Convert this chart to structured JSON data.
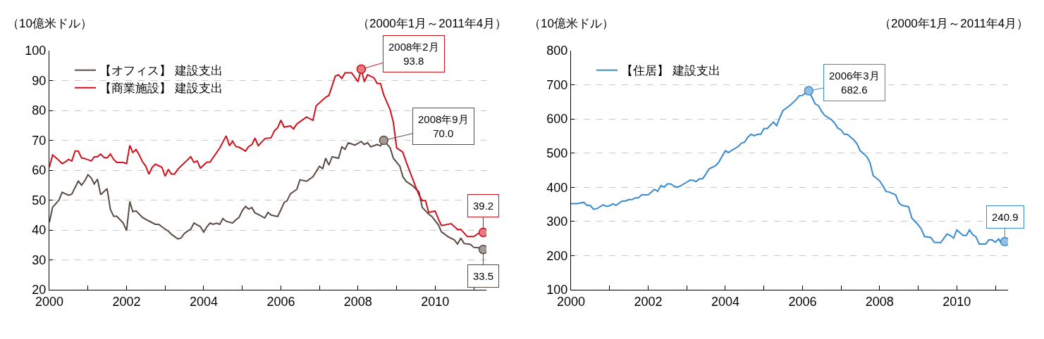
{
  "chart_data": [
    {
      "type": "line",
      "ylabel": "（10億米ドル）",
      "subtitle": "（2000年1月～2011年4月）",
      "legend": "top left",
      "grid": "y",
      "xlim": [
        "2000-01",
        "2011-05"
      ],
      "ylim": [
        20,
        100
      ],
      "yticks": [
        20,
        30,
        40,
        50,
        60,
        70,
        80,
        90,
        100
      ],
      "xticks": [
        {
          "value": "2000",
          "label": "2000"
        },
        {
          "value": "2001",
          "label": null
        },
        {
          "value": "2002",
          "label": "2002"
        },
        {
          "value": "2003",
          "label": null
        },
        {
          "value": "2004",
          "label": "2004"
        },
        {
          "value": "2005",
          "label": null
        },
        {
          "value": "2006",
          "label": "2006"
        },
        {
          "value": "2007",
          "label": null
        },
        {
          "value": "2008",
          "label": "2008"
        },
        {
          "value": "2009",
          "label": null
        },
        {
          "value": "2010",
          "label": "2010"
        },
        {
          "value": "2011",
          "label": null
        }
      ],
      "series": [
        {
          "name": "【オフィス】 建設支出",
          "color": "#5a4a42",
          "x": [
            "2000-01",
            "2000-02",
            "2000-04",
            "2000-05",
            "2000-07",
            "2000-08",
            "2000-10",
            "2000-11",
            "2000-12",
            "2001-01",
            "2001-02",
            "2001-03",
            "2001-04",
            "2001-05",
            "2001-07",
            "2001-08",
            "2001-09",
            "2001-10",
            "2001-12",
            "2002-01",
            "2002-02",
            "2002-03",
            "2002-04",
            "2002-06",
            "2002-08",
            "2002-10",
            "2002-11",
            "2003-01",
            "2003-02",
            "2003-03",
            "2003-04",
            "2003-05",
            "2003-06",
            "2003-07",
            "2003-08",
            "2003-09",
            "2003-10",
            "2003-12",
            "2004-01",
            "2004-02",
            "2004-03",
            "2004-04",
            "2004-05",
            "2004-06",
            "2004-07",
            "2004-08",
            "2004-10",
            "2004-11",
            "2004-12",
            "2005-01",
            "2005-02",
            "2005-03",
            "2005-04",
            "2005-05",
            "2005-06",
            "2005-08",
            "2005-09",
            "2005-10",
            "2005-12",
            "2006-01",
            "2006-02",
            "2006-03",
            "2006-04",
            "2006-06",
            "2006-07",
            "2006-09",
            "2006-11",
            "2007-01",
            "2007-02",
            "2007-03",
            "2007-04",
            "2007-05",
            "2007-07",
            "2007-08",
            "2007-09",
            "2007-10",
            "2007-12",
            "2008-02",
            "2008-03",
            "2008-04",
            "2008-05",
            "2008-07",
            "2008-08",
            "2008-09",
            "2008-11",
            "2008-12",
            "2009-02",
            "2009-03",
            "2009-04",
            "2009-06",
            "2009-08",
            "2009-09",
            "2009-11",
            "2009-12",
            "2010-02",
            "2010-03",
            "2010-05",
            "2010-07",
            "2010-08",
            "2010-09",
            "2010-10",
            "2010-12",
            "2011-01",
            "2011-03",
            "2011-04"
          ],
          "values": [
            42.6,
            47.6,
            50,
            52.6,
            51.6,
            52,
            56.4,
            55,
            56.4,
            58.5,
            57.4,
            55.4,
            57,
            51.8,
            53.8,
            46.9,
            44.6,
            44.6,
            42.3,
            39.8,
            49.5,
            46.1,
            46.4,
            44.2,
            43,
            41.9,
            41.9,
            40.3,
            39.6,
            38.6,
            37.8,
            37,
            37.3,
            38.8,
            39.6,
            40.3,
            42.3,
            41.1,
            39.3,
            41.1,
            42.3,
            41.9,
            42.3,
            41.9,
            43.8,
            42.9,
            42.3,
            43.4,
            44.2,
            46.5,
            47.9,
            47,
            47.5,
            45.7,
            45.2,
            44,
            45.9,
            45,
            44.5,
            46.7,
            49.2,
            49.8,
            52.1,
            53.6,
            56.8,
            56.3,
            57.8,
            61.3,
            60.5,
            64,
            61.7,
            64.5,
            64,
            67.8,
            67,
            69.2,
            68.4,
            69.6,
            68.6,
            69.2,
            67.8,
            68.6,
            68.1,
            70.0,
            67.5,
            64,
            61.3,
            57.8,
            56.3,
            54.8,
            52.7,
            47.5,
            45.3,
            44.5,
            41.7,
            39.4,
            37.8,
            36.7,
            35.3,
            37.3,
            35.5,
            35.2,
            34.2,
            34,
            33.5
          ]
        },
        {
          "name": "【商業施設】 建設支出",
          "color": "#d0101a",
          "x": [
            "2000-01",
            "2000-02",
            "2000-04",
            "2000-05",
            "2000-06",
            "2000-07",
            "2000-08",
            "2000-09",
            "2000-10",
            "2000-11",
            "2000-12",
            "2001-02",
            "2001-03",
            "2001-04",
            "2001-05",
            "2001-06",
            "2001-07",
            "2001-08",
            "2001-09",
            "2001-10",
            "2001-12",
            "2002-01",
            "2002-02",
            "2002-03",
            "2002-04",
            "2002-05",
            "2002-06",
            "2002-07",
            "2002-08",
            "2002-09",
            "2002-10",
            "2002-12",
            "2003-01",
            "2003-02",
            "2003-03",
            "2003-04",
            "2003-05",
            "2003-09",
            "2003-10",
            "2003-11",
            "2003-12",
            "2004-02",
            "2004-03",
            "2004-06",
            "2004-08",
            "2004-09",
            "2004-10",
            "2004-11",
            "2004-12",
            "2005-02",
            "2005-03",
            "2005-04",
            "2005-05",
            "2005-06",
            "2005-08",
            "2005-10",
            "2005-11",
            "2005-12",
            "2006-01",
            "2006-02",
            "2006-04",
            "2006-05",
            "2006-06",
            "2006-09",
            "2006-11",
            "2006-12",
            "2007-03",
            "2007-04",
            "2007-06",
            "2007-07",
            "2007-08",
            "2007-09",
            "2007-11",
            "2008-01",
            "2008-02",
            "2008-03",
            "2008-04",
            "2008-06",
            "2008-07",
            "2008-08",
            "2008-09",
            "2008-11",
            "2008-12",
            "2009-01",
            "2009-03",
            "2009-04",
            "2009-07",
            "2009-08",
            "2009-09",
            "2009-10",
            "2009-11",
            "2010-01",
            "2010-02",
            "2010-03",
            "2010-06",
            "2010-08",
            "2010-09",
            "2010-11",
            "2011-01",
            "2011-03",
            "2011-04"
          ],
          "values": [
            61,
            65.1,
            63.3,
            62.2,
            62.8,
            63.6,
            63.1,
            66.4,
            66.4,
            64.1,
            63.9,
            63.1,
            64.5,
            64.5,
            65.4,
            64.3,
            64.1,
            65.4,
            63.6,
            62.6,
            62.6,
            62.2,
            68.3,
            65.9,
            66.9,
            65.1,
            62.8,
            61.4,
            58.7,
            61,
            62,
            61,
            58,
            60.3,
            58.7,
            58.7,
            60.3,
            64.5,
            62.6,
            63.1,
            60.7,
            62.7,
            62.7,
            67.4,
            71.5,
            68.2,
            69.7,
            67.9,
            67.7,
            66.4,
            67.9,
            68.5,
            70.7,
            68.2,
            70.5,
            70.9,
            73.2,
            74.2,
            76.7,
            74.4,
            74.8,
            73.8,
            75.5,
            77.8,
            76.7,
            81.5,
            84.4,
            85,
            91.5,
            91.9,
            90.7,
            92.6,
            92.6,
            89.6,
            93.8,
            89.6,
            91.9,
            90.9,
            89,
            89,
            85.2,
            80.2,
            76,
            67.5,
            66,
            62.8,
            54.4,
            51.7,
            49.8,
            49.8,
            45.9,
            46.3,
            43.6,
            41.5,
            42.1,
            40.2,
            40.2,
            37.8,
            37.8,
            39.2,
            39.2
          ]
        }
      ],
      "annotations": [
        {
          "text": "2008年2月\n93.8",
          "x": "2008-02",
          "y": 93.8
        },
        {
          "text": "2008年9月\n70.0",
          "x": "2008-09",
          "y": 70.0
        },
        {
          "text": "39.2",
          "x": "2011-04",
          "y": 39.2
        },
        {
          "text": "33.5",
          "x": "2011-04",
          "y": 33.5
        }
      ]
    },
    {
      "type": "line",
      "ylabel": "（10億米ドル）",
      "subtitle": "（2000年1月～2011年4月）",
      "legend": "top left",
      "grid": "y",
      "xlim": [
        "2000-01",
        "2011-05"
      ],
      "ylim": [
        100,
        800
      ],
      "yticks": [
        100,
        200,
        300,
        400,
        500,
        600,
        700,
        800
      ],
      "xticks": [
        {
          "value": "2000",
          "label": "2000"
        },
        {
          "value": "2001",
          "label": null
        },
        {
          "value": "2002",
          "label": "2002"
        },
        {
          "value": "2003",
          "label": null
        },
        {
          "value": "2004",
          "label": "2004"
        },
        {
          "value": "2005",
          "label": null
        },
        {
          "value": "2006",
          "label": "2006"
        },
        {
          "value": "2007",
          "label": null
        },
        {
          "value": "2008",
          "label": "2008"
        },
        {
          "value": "2009",
          "label": null
        },
        {
          "value": "2010",
          "label": "2010"
        },
        {
          "value": "2011",
          "label": null
        }
      ],
      "series": [
        {
          "name": "【住居】 建設支出",
          "color": "#3a8ad0",
          "x": [
            "2000-01",
            "2000-03",
            "2000-05",
            "2000-06",
            "2000-07",
            "2000-08",
            "2000-09",
            "2000-10",
            "2000-11",
            "2000-12",
            "2001-01",
            "2001-02",
            "2001-03",
            "2001-05",
            "2001-06",
            "2001-07",
            "2001-08",
            "2001-09",
            "2001-10",
            "2001-11",
            "2002-01",
            "2002-02",
            "2002-03",
            "2002-04",
            "2002-05",
            "2002-06",
            "2002-07",
            "2002-08",
            "2002-09",
            "2002-10",
            "2002-11",
            "2003-01",
            "2003-02",
            "2003-03",
            "2003-04",
            "2003-05",
            "2003-06",
            "2003-07",
            "2003-08",
            "2003-10",
            "2003-11",
            "2004-01",
            "2004-02",
            "2004-03",
            "2004-05",
            "2004-06",
            "2004-07",
            "2004-08",
            "2004-09",
            "2004-10",
            "2004-11",
            "2004-12",
            "2005-01",
            "2005-02",
            "2005-04",
            "2005-05",
            "2005-06",
            "2005-07",
            "2005-09",
            "2005-11",
            "2005-12",
            "2006-01",
            "2006-03",
            "2006-04",
            "2006-05",
            "2006-06",
            "2006-07",
            "2006-08",
            "2006-10",
            "2006-11",
            "2006-12",
            "2007-01",
            "2007-02",
            "2007-03",
            "2007-05",
            "2007-06",
            "2007-07",
            "2007-09",
            "2007-10",
            "2007-11",
            "2008-01",
            "2008-02",
            "2008-03",
            "2008-04",
            "2008-06",
            "2008-07",
            "2008-08",
            "2008-10",
            "2008-11",
            "2009-01",
            "2009-02",
            "2009-03",
            "2009-05",
            "2009-06",
            "2009-08",
            "2009-09",
            "2009-10",
            "2009-11",
            "2009-12",
            "2010-01",
            "2010-03",
            "2010-04",
            "2010-05",
            "2010-06",
            "2010-07",
            "2010-08",
            "2010-10",
            "2010-11",
            "2010-12",
            "2011-01",
            "2011-02",
            "2011-03",
            "2011-04"
          ],
          "values": [
            352,
            352,
            356,
            347,
            347,
            336,
            337,
            343,
            349,
            344,
            346,
            352,
            347,
            360,
            360,
            364,
            364,
            369,
            369,
            378,
            378,
            386,
            394,
            388,
            405,
            401,
            410,
            410,
            404,
            400,
            404,
            415,
            421,
            420,
            417,
            425,
            425,
            439,
            454,
            463,
            474,
            507,
            502,
            508,
            519,
            529,
            532,
            547,
            555,
            551,
            555,
            555,
            572,
            572,
            591,
            580,
            605,
            625,
            639,
            656,
            668,
            669,
            682.6,
            663,
            644,
            639,
            622,
            610,
            598,
            588,
            573,
            568,
            555,
            555,
            539,
            527,
            507,
            490,
            473,
            434,
            419,
            404,
            388,
            386,
            378,
            354,
            347,
            343,
            310,
            290,
            276,
            256,
            253,
            239,
            238,
            251,
            263,
            259,
            251,
            275,
            259,
            259,
            275,
            261,
            255,
            234,
            234,
            246,
            246,
            239,
            249,
            234,
            240.9
          ]
        }
      ],
      "annotations": [
        {
          "text": "2006年3月\n682.6",
          "x": "2006-03",
          "y": 682.6
        },
        {
          "text": "240.9",
          "x": "2011-04",
          "y": 240.9
        }
      ]
    }
  ]
}
